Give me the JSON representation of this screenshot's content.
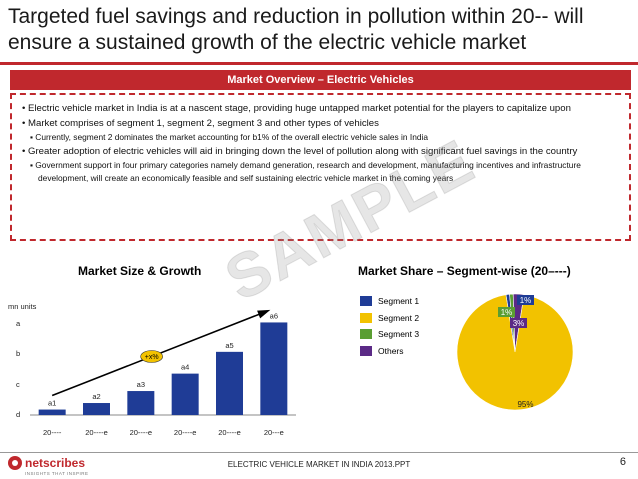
{
  "title": "Targeted fuel savings and reduction in pollution within 20-- will ensure a sustained growth of the electric vehicle market",
  "banner": "Market Overview – Electric Vehicles",
  "overview": {
    "b1": "• Electric vehicle market in India is at a nascent stage, providing huge untapped market potential for the players to capitalize upon",
    "b2": "• Market comprises of segment 1, segment 2, segment 3 and other types of vehicles",
    "b2s": "▪ Currently, segment 2 dominates the market accounting for b1% of the overall electric vehicle sales in India",
    "b3": "• Greater adoption of electric vehicles will aid in bringing down the level of pollution along with significant fuel savings in the country",
    "b3s": "▪ Government support in four primary categories namely demand generation, research and development, manufacturing incentives and infrastructure development, will create an economically feasible and self sustaining electric vehicle market in the coming years"
  },
  "watermark": "SAMPLE",
  "chart_data": [
    {
      "type": "bar",
      "title": "Market Size & Growth",
      "ylabel": "mn units",
      "y_tick_labels": [
        "a",
        "b",
        "c",
        "d"
      ],
      "categories": [
        "20----",
        "20----e",
        "20----e",
        "20----e",
        "20----e",
        "20---e"
      ],
      "values": [
        1,
        2.2,
        4.4,
        7.6,
        11.6,
        17
      ],
      "ylim": [
        0,
        18
      ],
      "data_labels": [
        "a1",
        "a2",
        "a3",
        "a4",
        "a5",
        "a6"
      ],
      "annotation": "+x%",
      "color": "#1f3c96"
    },
    {
      "type": "pie",
      "title": "Market Share – Segment-wise (20–---)",
      "labels": [
        "Segment 1",
        "Segment 2",
        "Segment 3",
        "Others"
      ],
      "values": [
        1,
        95,
        1,
        3
      ],
      "value_labels": [
        "1%",
        "95%",
        "1%",
        "3%"
      ],
      "colors": [
        "#1f3c96",
        "#f2c200",
        "#5a9e32",
        "#5b2a86"
      ]
    }
  ],
  "footer": {
    "brand": "netscribes",
    "brand_sub": "INSIGHTS THAT INSPIRE",
    "text": "ELECTRIC VEHICLE MARKET IN INDIA 2013.PPT",
    "page": "6"
  }
}
